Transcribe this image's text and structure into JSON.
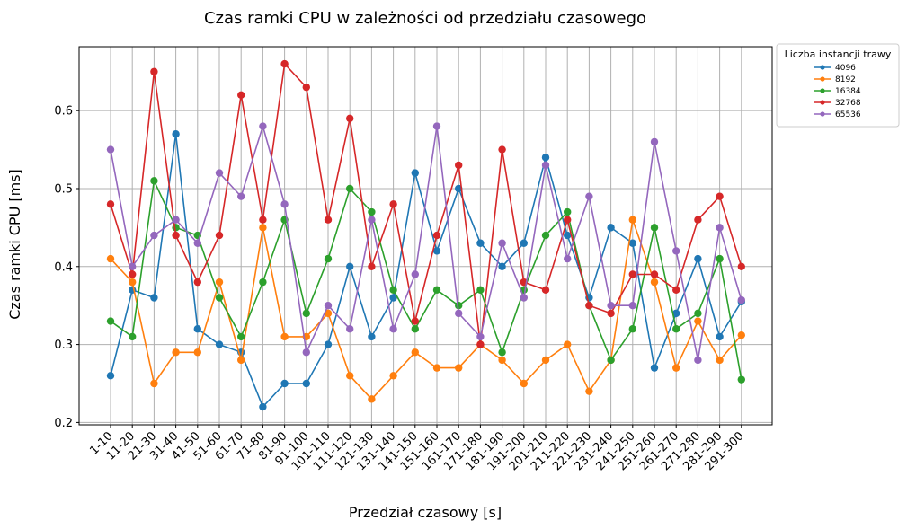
{
  "chart_data": {
    "type": "line",
    "title": "Czas ramki CPU w zależności od przedziału czasowego",
    "xlabel": "Przedział czasowy [s]",
    "ylabel": "Czas ramki CPU [ms]",
    "ylim": [
      0.197,
      0.682
    ],
    "yticks": [
      0.2,
      0.3,
      0.4,
      0.5,
      0.6
    ],
    "grid": true,
    "legend_title": "Liczba instancji trawy",
    "legend_position": "outside top-right",
    "categories": [
      "1-10",
      "11-20",
      "21-30",
      "31-40",
      "41-50",
      "51-60",
      "61-70",
      "71-80",
      "81-90",
      "91-100",
      "101-110",
      "111-120",
      "121-130",
      "131-140",
      "141-150",
      "151-160",
      "161-170",
      "171-180",
      "181-190",
      "191-200",
      "201-210",
      "211-220",
      "221-230",
      "231-240",
      "241-250",
      "251-260",
      "261-270",
      "271-280",
      "281-290",
      "291-300"
    ],
    "series": [
      {
        "name": "4096",
        "color": "#1f77b4",
        "values": [
          0.26,
          0.37,
          0.36,
          0.57,
          0.32,
          0.3,
          0.29,
          0.22,
          0.25,
          0.25,
          0.3,
          0.4,
          0.31,
          0.36,
          0.52,
          0.42,
          0.5,
          0.43,
          0.4,
          0.43,
          0.54,
          0.44,
          0.36,
          0.45,
          0.43,
          0.27,
          0.34,
          0.41,
          0.31,
          0.355
        ]
      },
      {
        "name": "8192",
        "color": "#ff7f0e",
        "values": [
          0.41,
          0.38,
          0.25,
          0.29,
          0.29,
          0.38,
          0.28,
          0.45,
          0.31,
          0.31,
          0.34,
          0.26,
          0.23,
          0.26,
          0.29,
          0.27,
          0.27,
          0.3,
          0.28,
          0.25,
          0.28,
          0.3,
          0.24,
          0.28,
          0.46,
          0.38,
          0.27,
          0.33,
          0.28,
          0.312
        ]
      },
      {
        "name": "16384",
        "color": "#2ca02c",
        "values": [
          0.33,
          0.31,
          0.51,
          0.45,
          0.44,
          0.36,
          0.31,
          0.38,
          0.46,
          0.34,
          0.41,
          0.5,
          0.47,
          0.37,
          0.32,
          0.37,
          0.35,
          0.37,
          0.29,
          0.37,
          0.44,
          0.47,
          0.35,
          0.28,
          0.32,
          0.45,
          0.32,
          0.34,
          0.41,
          0.255
        ]
      },
      {
        "name": "32768",
        "color": "#d62728",
        "values": [
          0.48,
          0.39,
          0.65,
          0.44,
          0.38,
          0.44,
          0.62,
          0.46,
          0.66,
          0.63,
          0.46,
          0.59,
          0.4,
          0.48,
          0.33,
          0.44,
          0.53,
          0.3,
          0.55,
          0.38,
          0.37,
          0.46,
          0.35,
          0.34,
          0.39,
          0.39,
          0.37,
          0.46,
          0.49,
          0.4
        ]
      },
      {
        "name": "65536",
        "color": "#9467bd",
        "values": [
          0.55,
          0.4,
          0.44,
          0.46,
          0.43,
          0.52,
          0.49,
          0.58,
          0.48,
          0.29,
          0.35,
          0.32,
          0.46,
          0.32,
          0.39,
          0.58,
          0.34,
          0.31,
          0.43,
          0.36,
          0.53,
          0.41,
          0.49,
          0.35,
          0.35,
          0.56,
          0.42,
          0.28,
          0.45,
          0.357
        ]
      }
    ]
  }
}
